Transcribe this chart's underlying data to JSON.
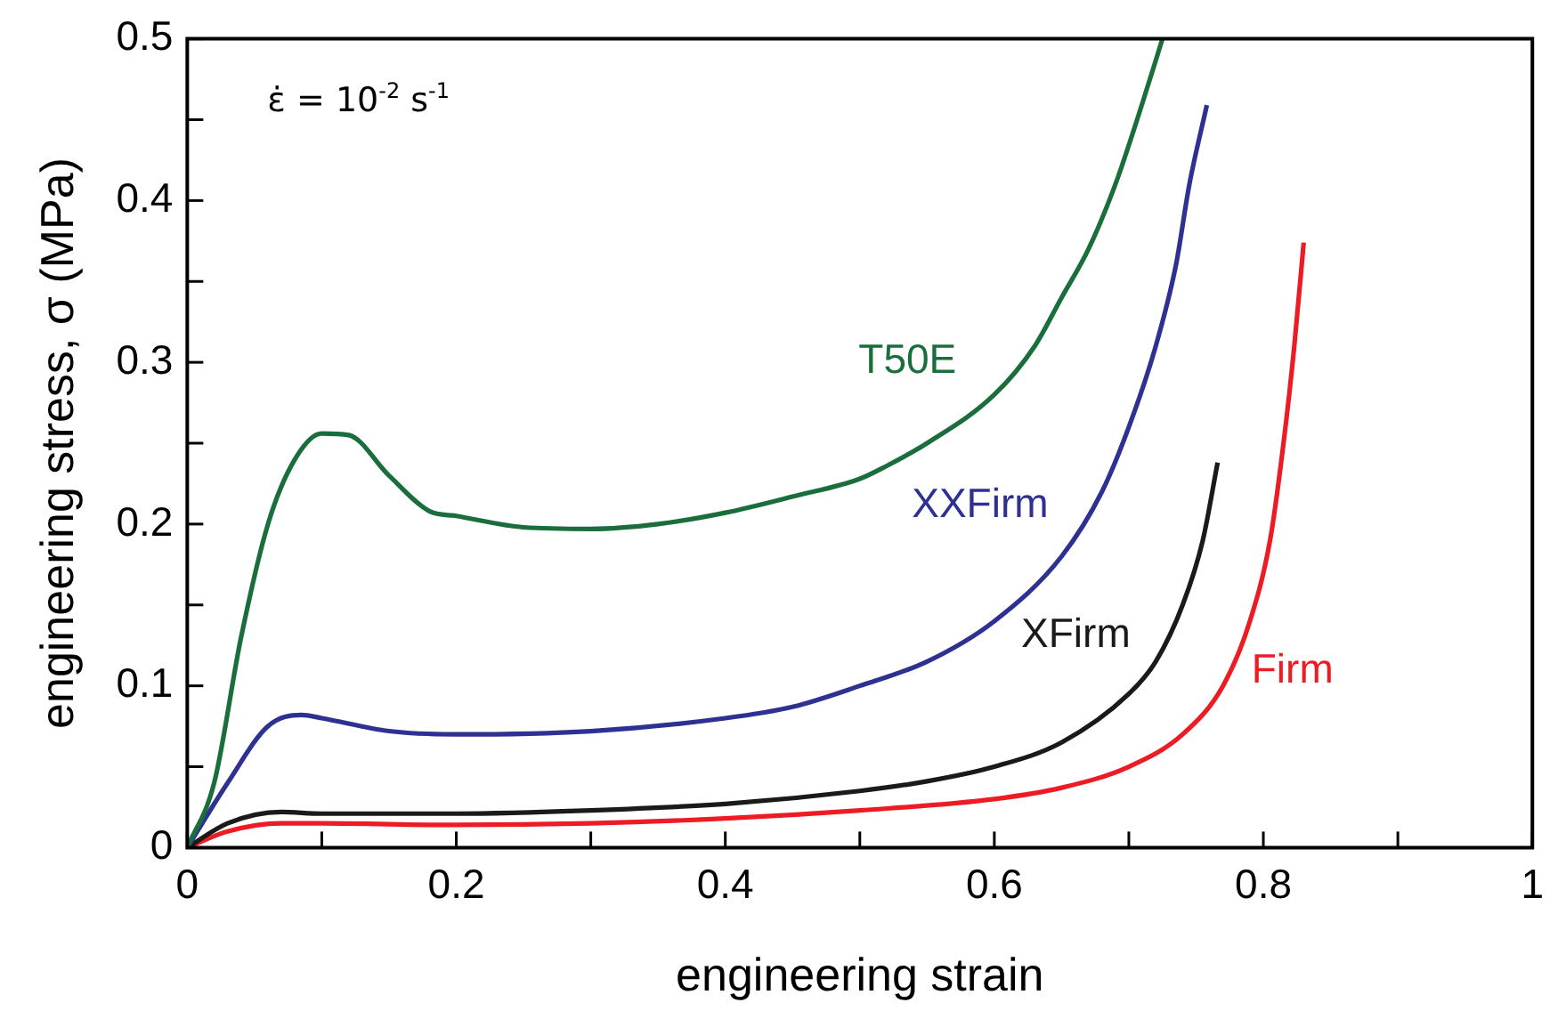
{
  "chart_data": {
    "type": "line",
    "xlabel": "engineering strain",
    "ylabel": "engineering stress, σ (MPa)",
    "annotations": [
      "ε̇ = 10$^{-2}$ s$^{-1}$"
    ],
    "xlim": [
      0,
      1
    ],
    "xticks": [
      0,
      {
        "value": 0.1,
        "label": null
      },
      0.2,
      {
        "value": 0.3,
        "label": null
      },
      0.4,
      {
        "value": 0.5,
        "label": null
      },
      0.6,
      {
        "value": 0.7,
        "label": null
      },
      0.8,
      {
        "value": 0.9,
        "label": null
      },
      1
    ],
    "ylim": [
      0,
      0.5
    ],
    "yticks": [
      0,
      {
        "value": 0.05,
        "label": null
      },
      0.1,
      {
        "value": 0.15,
        "label": null
      },
      0.2,
      {
        "value": 0.25,
        "label": null
      },
      0.3,
      {
        "value": 0.35,
        "label": null
      },
      0.4,
      {
        "value": 0.45,
        "label": null
      },
      0.5
    ],
    "grid": false,
    "legend": false,
    "marker": "none",
    "line_style": "solid",
    "series": [
      {
        "name": "T50E",
        "color": "#1a6e3c",
        "x": [
          0,
          0.02,
          0.04,
          0.06,
          0.08,
          0.1,
          0.12,
          0.15,
          0.18,
          0.2,
          0.25,
          0.3,
          0.35,
          0.4,
          0.45,
          0.5,
          0.52,
          0.55,
          0.6,
          0.63,
          0.65,
          0.67,
          0.69,
          0.71,
          0.725
        ],
        "values": [
          0,
          0.04,
          0.13,
          0.2,
          0.24,
          0.256,
          0.255,
          0.23,
          0.208,
          0.205,
          0.198,
          0.197,
          0.2,
          0.207,
          0.217,
          0.228,
          0.236,
          0.25,
          0.28,
          0.31,
          0.34,
          0.37,
          0.41,
          0.46,
          0.5
        ]
      },
      {
        "name": "XXFirm",
        "color": "#2e3192",
        "x": [
          0,
          0.03,
          0.06,
          0.085,
          0.1,
          0.15,
          0.2,
          0.3,
          0.4,
          0.45,
          0.5,
          0.55,
          0.6,
          0.65,
          0.68,
          0.7,
          0.72,
          0.735,
          0.745,
          0.758
        ],
        "values": [
          0,
          0.04,
          0.075,
          0.082,
          0.08,
          0.072,
          0.07,
          0.072,
          0.08,
          0.087,
          0.1,
          0.115,
          0.14,
          0.18,
          0.22,
          0.26,
          0.31,
          0.36,
          0.41,
          0.459
        ]
      },
      {
        "name": "XFirm",
        "color": "#1a1a1a",
        "x": [
          0,
          0.03,
          0.07,
          0.1,
          0.2,
          0.3,
          0.4,
          0.5,
          0.55,
          0.6,
          0.65,
          0.7,
          0.72,
          0.74,
          0.755,
          0.766
        ],
        "values": [
          0,
          0.015,
          0.022,
          0.021,
          0.021,
          0.023,
          0.027,
          0.035,
          0.041,
          0.05,
          0.065,
          0.095,
          0.115,
          0.15,
          0.19,
          0.238
        ]
      },
      {
        "name": "Firm",
        "color": "#ed1c24",
        "x": [
          0,
          0.03,
          0.07,
          0.1,
          0.2,
          0.3,
          0.4,
          0.5,
          0.6,
          0.65,
          0.7,
          0.74,
          0.77,
          0.79,
          0.805,
          0.815,
          0.823,
          0.83
        ],
        "values": [
          0,
          0.01,
          0.015,
          0.015,
          0.014,
          0.015,
          0.018,
          0.023,
          0.03,
          0.037,
          0.05,
          0.07,
          0.1,
          0.14,
          0.19,
          0.25,
          0.31,
          0.374
        ]
      }
    ]
  }
}
